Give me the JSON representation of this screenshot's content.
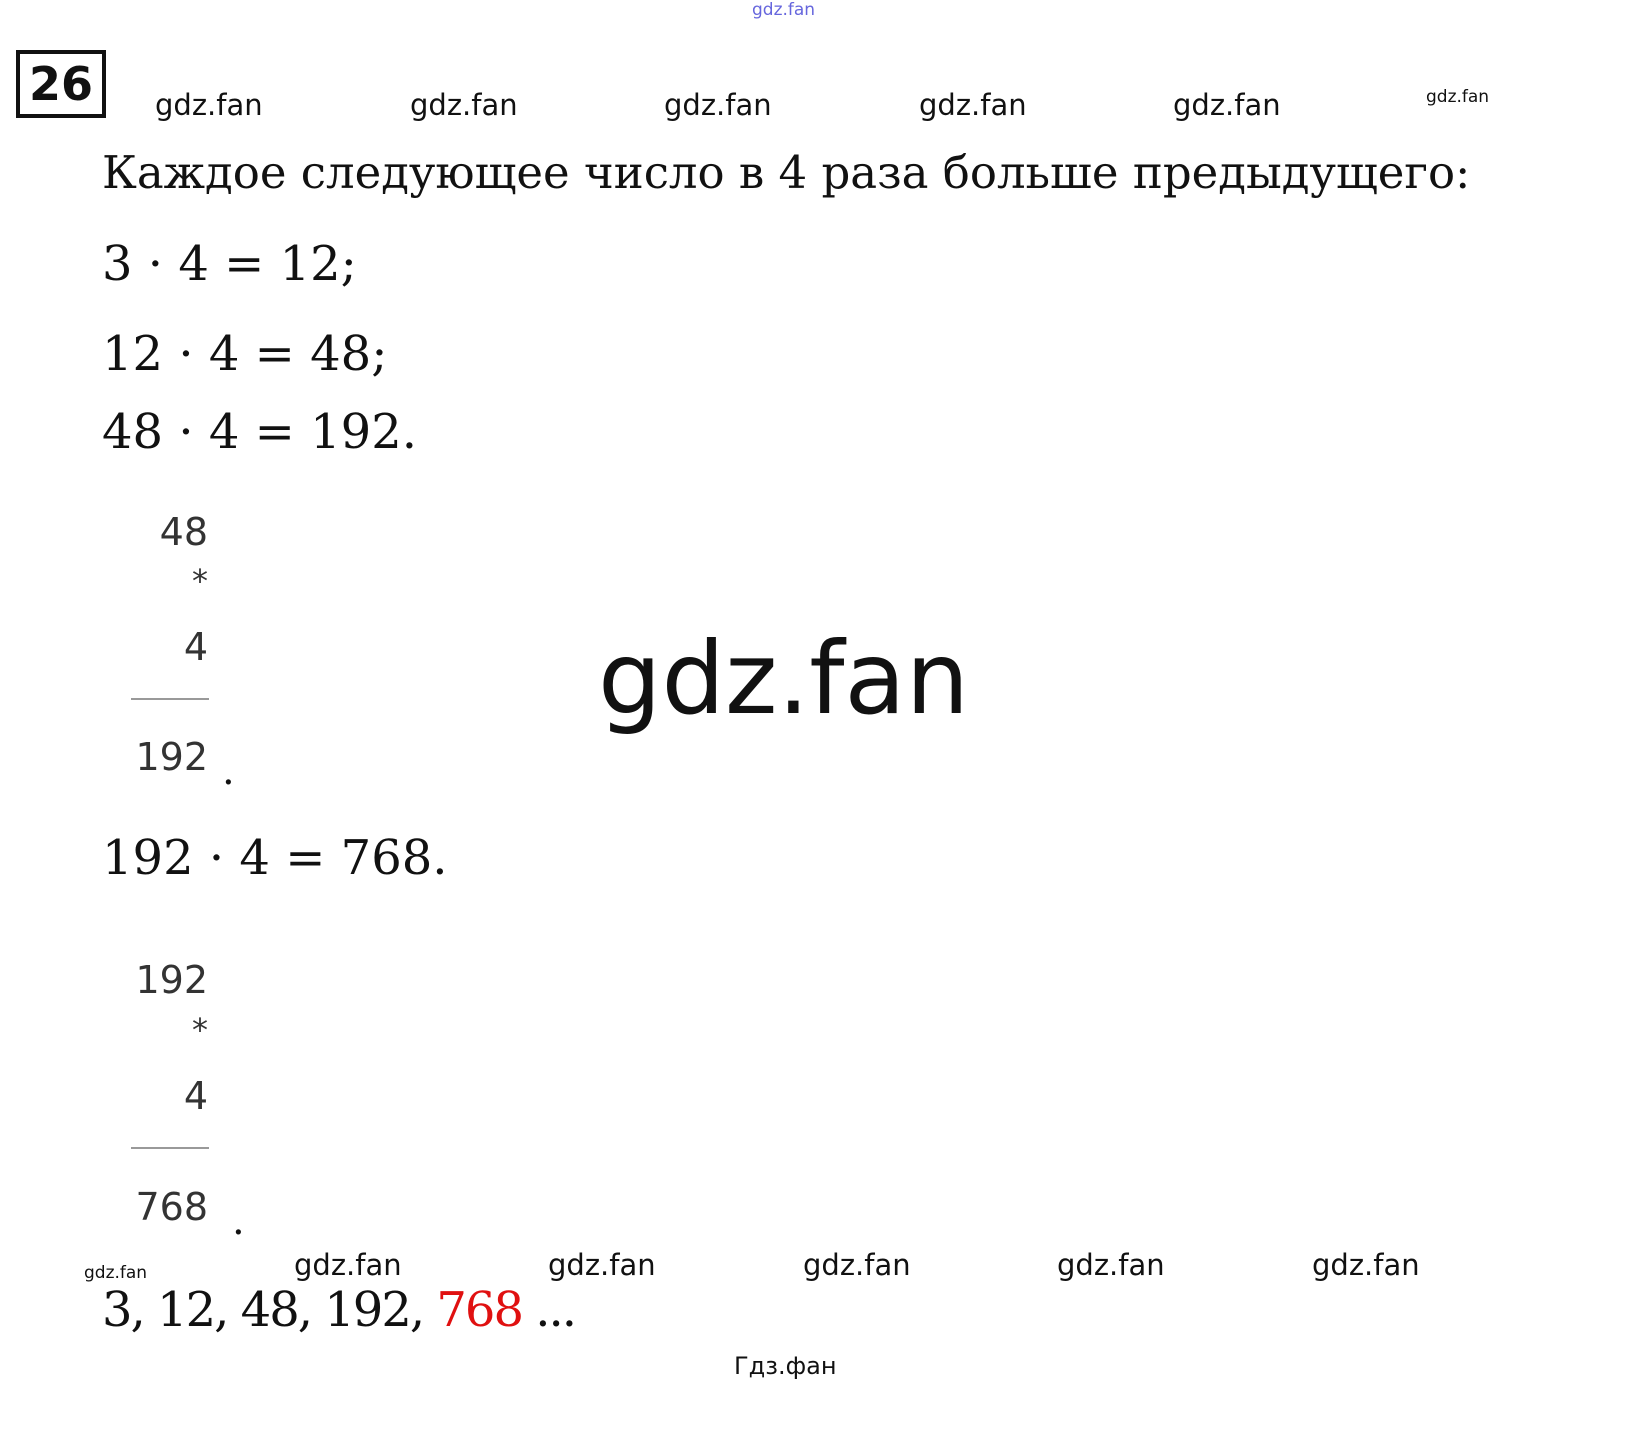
{
  "watermarks": {
    "top": "gdz.fan",
    "row_top": [
      "gdz.fan",
      "gdz.fan",
      "gdz.fan",
      "gdz.fan",
      "gdz.fan"
    ],
    "top_right_small": "gdz.fan",
    "center": "gdz.fan",
    "bottom_left_small": "gdz.fan",
    "row_bottom": [
      "gdz.fan",
      "gdz.fan",
      "gdz.fan",
      "gdz.fan",
      "gdz.fan"
    ],
    "footer": "Гдз.фан"
  },
  "task_number": "26",
  "intro": "Каждое следующее число в 4 раза больше предыдущего:",
  "equations": [
    "3 · 4 = 12;",
    "12 · 4 = 48;",
    "48 · 4 = 192."
  ],
  "column1": {
    "a": "48",
    "op": "*",
    "b": "4",
    "result": "192",
    "dot": "."
  },
  "equation4": "192 · 4 = 768.",
  "column2": {
    "a": "192",
    "op": "*",
    "b": "4",
    "result": "768",
    "dot": "."
  },
  "answer": {
    "sequence": "3, 12, 48, 192, ",
    "highlight": "768",
    "tail": " ...",
    "highlight_color": "#e01010"
  }
}
